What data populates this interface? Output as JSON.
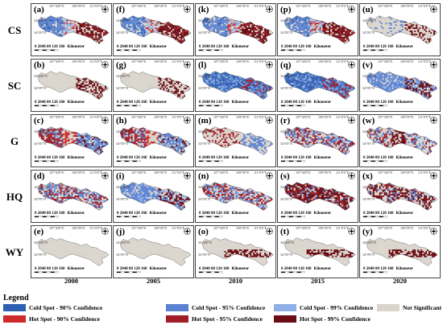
{
  "rows": [
    {
      "key": "CS",
      "label": "CS"
    },
    {
      "key": "SC",
      "label": "SC"
    },
    {
      "key": "G",
      "label": "G"
    },
    {
      "key": "HQ",
      "label": "HQ"
    },
    {
      "key": "WY",
      "label": "WY"
    }
  ],
  "years": [
    "2000",
    "2005",
    "2010",
    "2015",
    "2020"
  ],
  "panel_labels": [
    [
      "(a)",
      "(f)",
      "(k)",
      "(p)",
      "(u)"
    ],
    [
      "(b)",
      "(g)",
      "(l)",
      "(q)",
      "(v)"
    ],
    [
      "(c)",
      "(h)",
      "(m)",
      "(r)",
      "(w)"
    ],
    [
      "(d)",
      "(i)",
      "(n)",
      "(s)",
      "(x)"
    ],
    [
      "(e)",
      "(j)",
      "(o)",
      "(t)",
      "(y)"
    ]
  ],
  "map_ticks": {
    "lon": [
      "107°30'0\"E",
      "109°0'0\"E",
      "111°0'0\"E"
    ],
    "lat": [
      "34°30'0\"N",
      "34°0'0\"N"
    ]
  },
  "scale_bar": {
    "numbers": "0 2040   80  120  160",
    "unit": "Kilometer"
  },
  "legend": {
    "title": "Legend",
    "items": [
      {
        "label": "Cold Spot - 90% Confidence",
        "color": "#2f5fb0"
      },
      {
        "label": "Cold Spot - 95% Confidence",
        "color": "#5b82d0"
      },
      {
        "label": "Cold Spot - 99% Confidence",
        "color": "#8fb0e6"
      },
      {
        "label": "Not Significant",
        "color": "#d9d4cc"
      },
      {
        "label": "Hot Spot - 90% Confidence",
        "color": "#d02b2b"
      },
      {
        "label": "Hot Spot - 95% Confidence",
        "color": "#a11c25"
      },
      {
        "label": "Hot Spot - 99% Confidence",
        "color": "#6b0b12"
      }
    ]
  },
  "colors": {
    "cold_dominant": "#5b82d0",
    "hot_dominant": "#8e1820",
    "neutral": "#d9d4cc"
  },
  "panel_pattern": [
    [
      "cold-west-hot-east",
      "cold-west-hot-east",
      "cold-west-hot-east",
      "cold-west-hot-east",
      "neutral-scattered"
    ],
    [
      "neutral-hot-east",
      "neutral-hot-east",
      "cold-dominant",
      "cold-dominant",
      "cold-mixed"
    ],
    [
      "hot-west-cold-east",
      "hot-west-cold-east",
      "cold-east",
      "mixed",
      "hot-center"
    ],
    [
      "mixed",
      "cold-mixed",
      "mixed",
      "hot-dominant",
      "hot-mixed"
    ],
    [
      "neutral",
      "neutral",
      "hot-band",
      "hot-band",
      "hot-band"
    ]
  ]
}
